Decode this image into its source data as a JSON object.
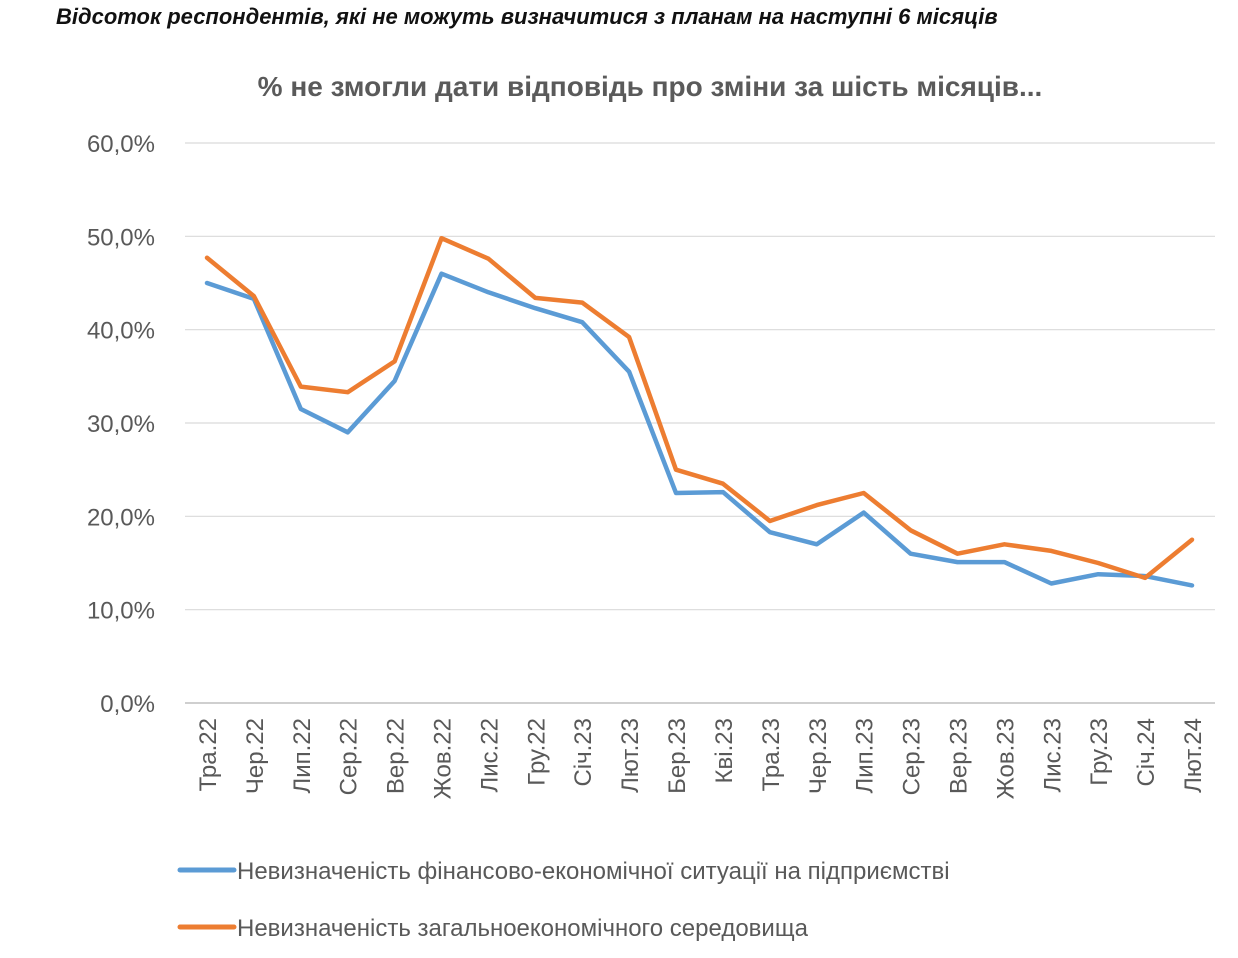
{
  "header": {
    "title": "Відсоток респондентів, які не можуть визначитися з планам на наступні 6 місяців"
  },
  "chart_data": {
    "type": "line",
    "title": "% не змогли дати відповідь про зміни за шість місяців...",
    "xlabel": "",
    "ylabel": "",
    "ylim": [
      0,
      60
    ],
    "yticks": [
      0,
      10,
      20,
      30,
      40,
      50,
      60
    ],
    "ytick_labels": [
      "0,0%",
      "10,0%",
      "20,0%",
      "30,0%",
      "40,0%",
      "50,0%",
      "60,0%"
    ],
    "grid": true,
    "legend_position": "bottom",
    "categories": [
      "Тра.22",
      "Чер.22",
      "Лип.22",
      "Сер.22",
      "Вер.22",
      "Жов.22",
      "Лис.22",
      "Гру.22",
      "Січ.23",
      "Лют.23",
      "Бер.23",
      "Кві.23",
      "Тра.23",
      "Чер.23",
      "Лип.23",
      "Сер.23",
      "Вер.23",
      "Жов.23",
      "Лис.23",
      "Гру.23",
      "Січ.24",
      "Лют.24"
    ],
    "series": [
      {
        "name": "Невизначеність фінансово-економічної ситуації на підприємстві",
        "color": "#5b9bd5",
        "values": [
          45.0,
          43.3,
          31.5,
          29.0,
          34.5,
          46.0,
          44.0,
          42.3,
          40.8,
          35.5,
          22.5,
          22.6,
          18.3,
          17.0,
          20.4,
          16.0,
          15.1,
          15.1,
          12.8,
          13.8,
          13.6,
          12.6
        ]
      },
      {
        "name": "Невизначеність загальноекономічного середовища",
        "color": "#ed7d31",
        "values": [
          47.7,
          43.6,
          33.9,
          33.3,
          36.6,
          49.8,
          47.6,
          43.4,
          42.9,
          39.2,
          25.0,
          23.5,
          19.5,
          21.2,
          22.5,
          18.5,
          16.0,
          17.0,
          16.3,
          15.0,
          13.4,
          17.5
        ]
      }
    ]
  }
}
